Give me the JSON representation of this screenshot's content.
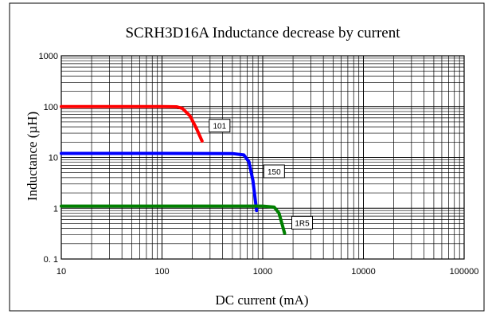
{
  "chart_data": {
    "type": "line",
    "title": "SCRH3D16A Inductance decrease by current",
    "xlabel": "DC current (mA)",
    "ylabel": "Inductance (µH)",
    "x_scale": "log",
    "y_scale": "log",
    "xlim": [
      10,
      100000
    ],
    "ylim": [
      0.1,
      1000
    ],
    "grid": true,
    "x_ticks": [
      "10",
      "100",
      "1000",
      "10000",
      "100000"
    ],
    "y_ticks": [
      "1000",
      "100",
      "10",
      "1",
      "0. 1"
    ],
    "series": [
      {
        "name": "101",
        "color": "#ff0000",
        "x": [
          10,
          100,
          140,
          160,
          190,
          220,
          250
        ],
        "y": [
          100,
          100,
          99,
          92,
          65,
          37,
          21
        ]
      },
      {
        "name": "150",
        "color": "#0000ff",
        "x": [
          10,
          100,
          500,
          650,
          730,
          800,
          870
        ],
        "y": [
          12,
          12,
          11.9,
          11.2,
          8.2,
          3.5,
          0.9
        ]
      },
      {
        "name": "1R5",
        "color": "#008000",
        "x": [
          10,
          100,
          1000,
          1300,
          1450,
          1550,
          1650
        ],
        "y": [
          1.1,
          1.1,
          1.1,
          1.05,
          0.8,
          0.5,
          0.32
        ]
      }
    ]
  }
}
